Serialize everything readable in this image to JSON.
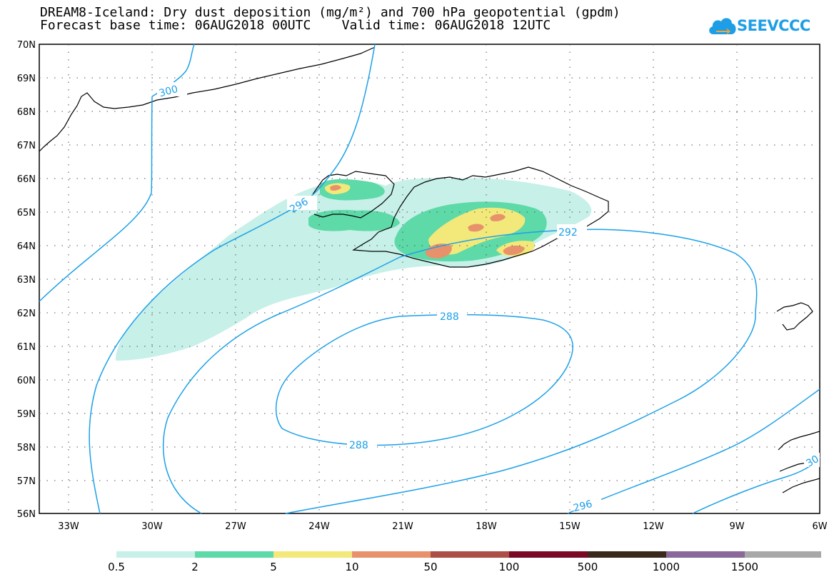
{
  "header": {
    "title_line1": "DREAM8-Iceland: Dry dust deposition (mg/m²) and 700 hPa geopotential (gpdm)",
    "title_line2": "Forecast base time: 06AUG2018 00UTC    Valid time: 06AUG2018 12UTC",
    "logo_text": "SEEVCCC"
  },
  "map": {
    "lat_labels": [
      "70N",
      "69N",
      "68N",
      "67N",
      "66N",
      "65N",
      "64N",
      "63N",
      "62N",
      "61N",
      "60N",
      "59N",
      "58N",
      "57N",
      "56N"
    ],
    "lon_labels": [
      "33W",
      "30W",
      "27W",
      "24W",
      "21W",
      "18W",
      "15W",
      "12W",
      "9W",
      "6W"
    ],
    "contour_labels": [
      "300",
      "296",
      "292",
      "288",
      "288",
      "296",
      "30"
    ],
    "colors": {
      "contour": "#1ca0e8",
      "coast": "#000000"
    }
  },
  "legend": {
    "thresholds": [
      "0.5",
      "2",
      "5",
      "10",
      "50",
      "100",
      "500",
      "1000",
      "1500"
    ],
    "colors": [
      "#c6f0e8",
      "#5ed9a8",
      "#f2e97a",
      "#e8926c",
      "#ab4f47",
      "#7a0a24",
      "#3a2a1c",
      "#8a689a",
      "#a8a8a8"
    ]
  }
}
